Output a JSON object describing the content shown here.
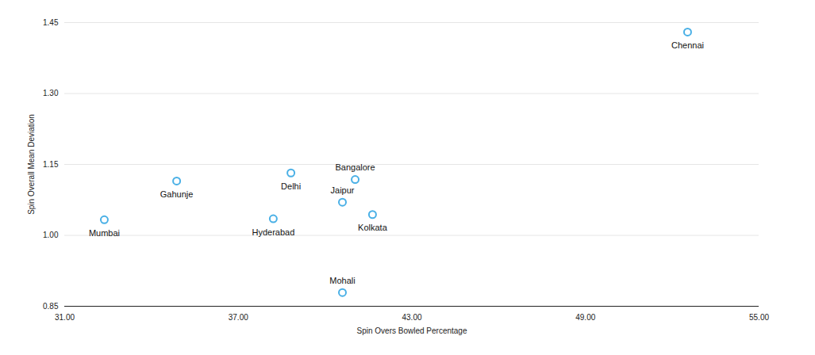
{
  "chart_data": {
    "type": "scatter",
    "x_label": "Spin Overs Bowled Percentage",
    "y_label": "Spin Overall Mean Deviation",
    "categories": [
      "Chennai",
      "Gahunje",
      "Mumbai",
      "Delhi",
      "Hyderabad",
      "Bangalore",
      "Jaipur",
      "Kolkata",
      "Mohali"
    ],
    "x": [
      52.53,
      34.87,
      32.37,
      38.82,
      38.21,
      41.04,
      40.6,
      41.64,
      40.6
    ],
    "values": [
      1.43,
      1.115,
      1.033,
      1.132,
      1.035,
      1.118,
      1.07,
      1.044,
      0.879
    ],
    "color": "#4ab0e6",
    "marker": "circle",
    "xlim": [
      31,
      55
    ],
    "xticks": [
      {
        "value": 31,
        "label": "31.00"
      },
      {
        "value": 37,
        "label": "37.00"
      },
      {
        "value": 43,
        "label": "43.00"
      },
      {
        "value": 49,
        "label": "49.00"
      },
      {
        "value": 55,
        "label": "55.00"
      }
    ],
    "ylim": [
      0.85,
      1.45
    ],
    "yticks": [
      0.85,
      {
        "value": 1,
        "label": "1.00"
      },
      1.15,
      {
        "value": 1.3,
        "label": "1.30"
      },
      1.45
    ],
    "grid": true
  }
}
